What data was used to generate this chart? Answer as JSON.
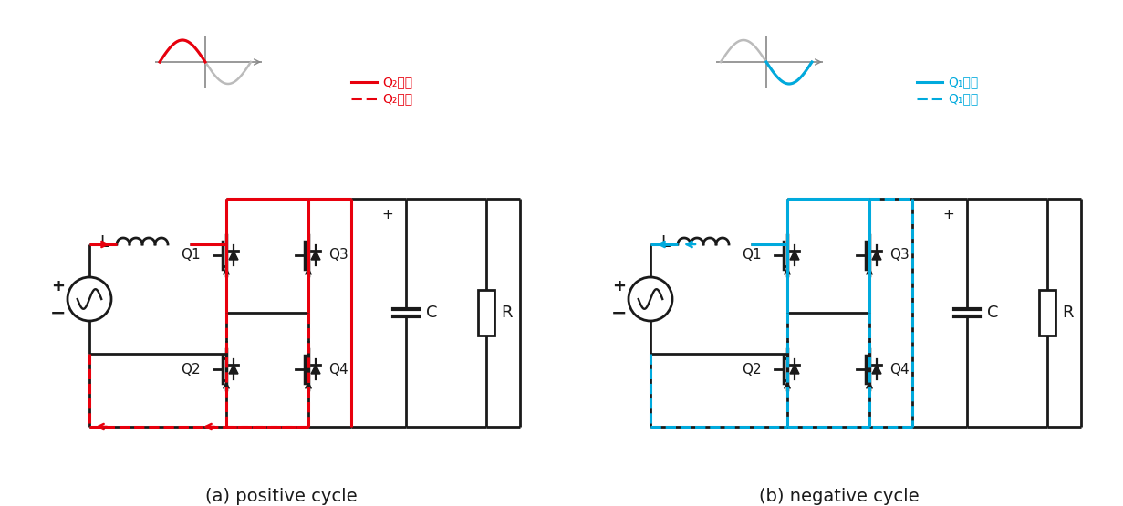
{
  "title_a": "(a) positive cycle",
  "title_b": "(b) negative cycle",
  "red": "#e8000d",
  "blue": "#00aadd",
  "black": "#1a1a1a",
  "gray": "#888888",
  "light_gray": "#bbbbbb",
  "bg": "#ffffff",
  "legend_a_on": "Q₂オン",
  "legend_a_off": "Q₂オフ",
  "legend_b_on": "Q₁オン",
  "legend_b_off": "Q₁オフ"
}
